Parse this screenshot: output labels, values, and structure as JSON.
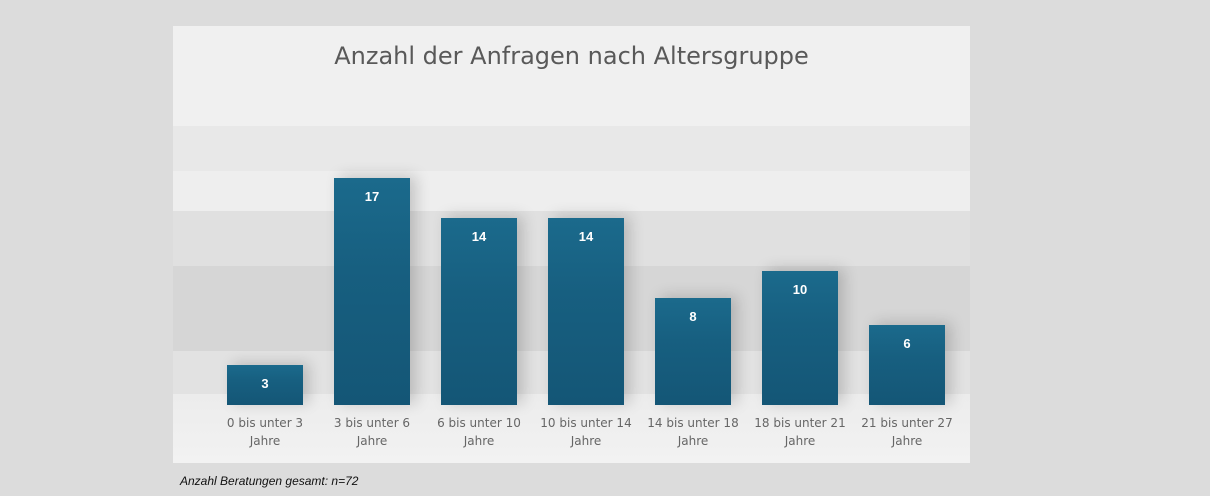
{
  "chart_data": {
    "type": "bar",
    "title": "Anzahl der Anfragen nach Altersgruppe",
    "categories": [
      "0 bis unter 3 Jahre",
      "3 bis unter 6 Jahre",
      "6 bis unter 10 Jahre",
      "10 bis unter 14 Jahre",
      "14 bis unter 18 Jahre",
      "18 bis unter 21 Jahre",
      "21 bis unter 27 Jahre"
    ],
    "values": [
      3,
      17,
      14,
      14,
      8,
      10,
      6
    ],
    "color": "#175f80",
    "footnote": "Anzahl Beratungen gesamt: n=72"
  }
}
